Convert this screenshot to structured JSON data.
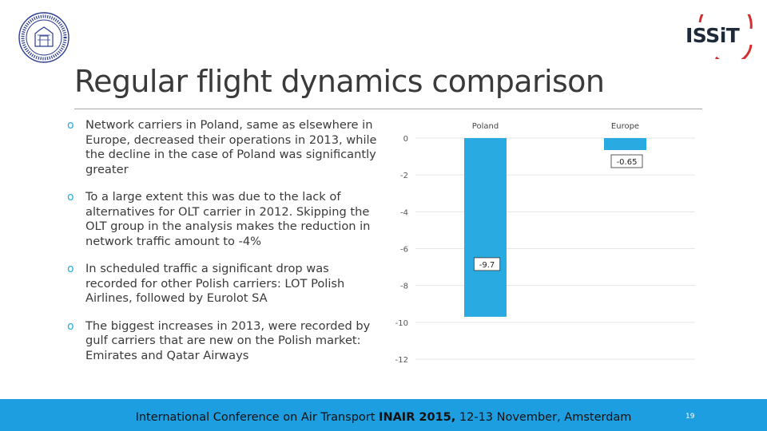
{
  "slide": {
    "title": "Regular flight dynamics comparison",
    "page_number": "19"
  },
  "bullets": [
    "Network carriers in Poland, same as elsewhere in Europe, decreased their operations in 2013, while the decline in the case of Poland was significantly greater",
    "To a large extent this was due to the lack of alternatives for OLT carrier in 2012. Skipping the OLT group in the analysis makes the reduction in network traffic amount to -4%",
    "In scheduled traffic a significant drop was recorded for other Polish carriers: LOT Polish Airlines, followed by Eurolot SA",
    "The biggest increases in 2013, were recorded by gulf carriers that are new on the Polish market: Emirates and Qatar Airways"
  ],
  "footer": {
    "prefix": "International Conference on Air Transport ",
    "event": "INAIR 2015,",
    "suffix": " 12-13 November, Amsterdam"
  },
  "colors": {
    "accent": "#1d9ee0",
    "bar": "#29abe2",
    "bullet": "#29abe2"
  },
  "icons": {
    "seal": "university-seal-icon",
    "logo": "issit-logo"
  },
  "logo_text": "ISSiT",
  "chart_data": {
    "type": "bar",
    "categories": [
      "Poland",
      "Europe"
    ],
    "values": [
      -9.7,
      -0.65
    ],
    "data_labels": [
      "-9.7",
      "-0.65"
    ],
    "ylim": [
      -12,
      0
    ],
    "yticks": [
      0,
      -2,
      -4,
      -6,
      -8,
      -10,
      -12
    ],
    "ytick_labels": [
      "0",
      "-2",
      "-4",
      "-6",
      "-8",
      "-10",
      "-12"
    ],
    "category_axis_position": "top",
    "grid": true,
    "title": "",
    "xlabel": "",
    "ylabel": ""
  }
}
